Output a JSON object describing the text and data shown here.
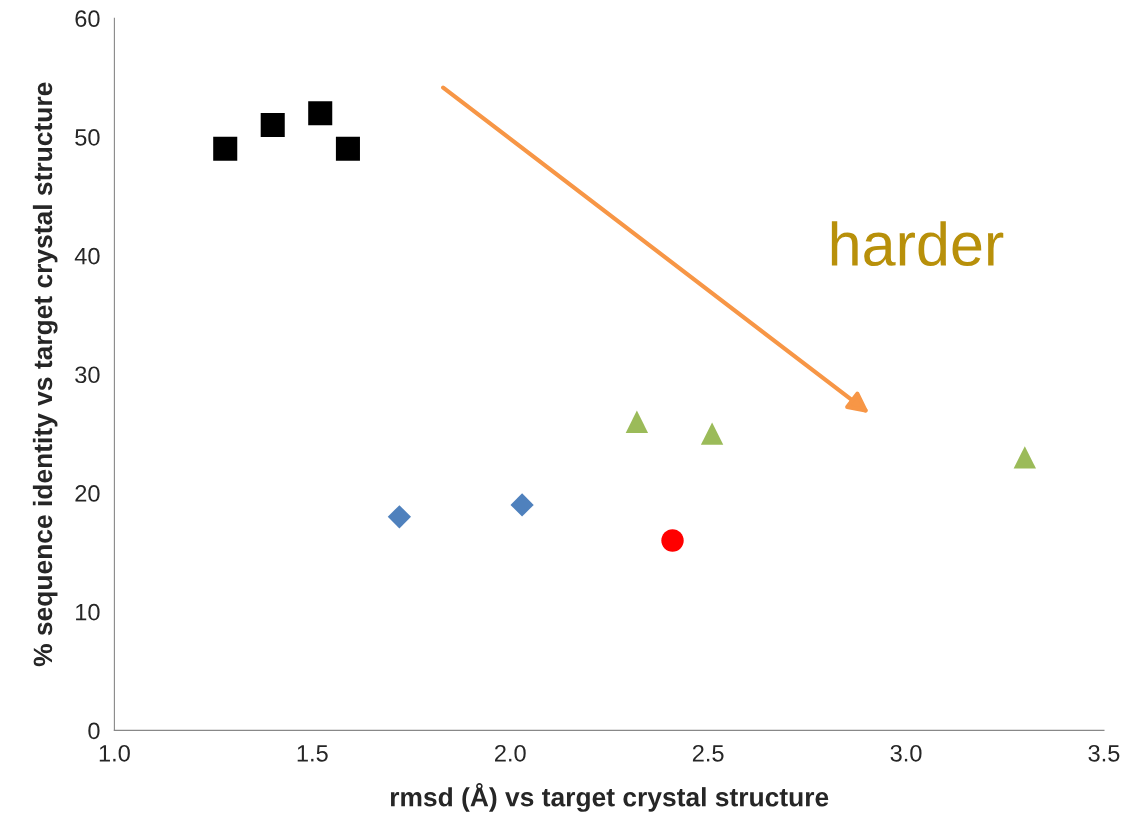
{
  "chart_data": {
    "type": "scatter",
    "xlabel": "rmsd (Å) vs target crystal structure",
    "ylabel": "% sequence identity vs target crystal structure",
    "xlim": [
      1.0,
      3.5
    ],
    "ylim": [
      0,
      60
    ],
    "xticks": [
      {
        "value": 1.0,
        "label": "1.0"
      },
      {
        "value": 1.5,
        "label": "1.5"
      },
      {
        "value": 2.0,
        "label": "2.0"
      },
      {
        "value": 2.5,
        "label": "2.5"
      },
      {
        "value": 3.0,
        "label": "3.0"
      },
      {
        "value": 3.5,
        "label": "3.5"
      }
    ],
    "yticks": [
      0,
      10,
      20,
      30,
      40,
      50,
      60
    ],
    "grid": false,
    "series": [
      {
        "color": "#000000",
        "marker": "square",
        "x": [
          1.28,
          1.4,
          1.52,
          1.59
        ],
        "values": [
          49,
          51,
          52,
          49
        ]
      },
      {
        "color": "#4f81bd",
        "marker": "diamond",
        "x": [
          1.72,
          2.03
        ],
        "values": [
          18,
          19
        ]
      },
      {
        "color": "#ff0000",
        "marker": "circle",
        "x": [
          2.41
        ],
        "values": [
          16
        ]
      },
      {
        "color": "#9bbb59",
        "marker": "triangle",
        "x": [
          2.32,
          2.51,
          3.3
        ],
        "values": [
          26,
          25,
          23
        ]
      }
    ],
    "annotations": [
      "harder"
    ]
  }
}
